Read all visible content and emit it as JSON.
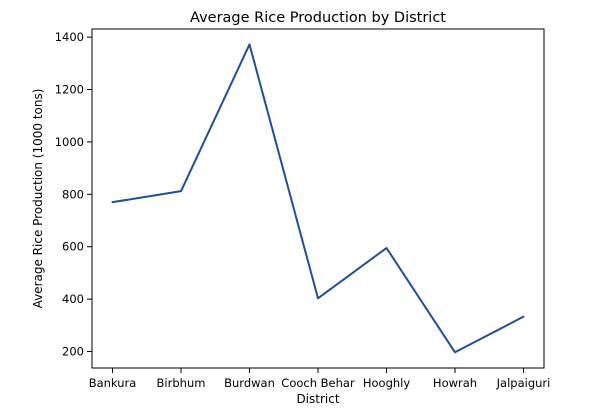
{
  "chart_data": {
    "type": "line",
    "title": "Average Rice Production by District",
    "xlabel": "District",
    "ylabel": "Average Rice Production (1000 tons)",
    "categories": [
      "Bankura",
      "Birbhum",
      "Burdwan",
      "Cooch Behar",
      "Hooghly",
      "Howrah",
      "Jalpaiguri"
    ],
    "series": [
      {
        "values": [
          770,
          812,
          1372,
          403,
          595,
          197,
          333
        ]
      }
    ],
    "yticks": [
      200,
      400,
      600,
      800,
      1000,
      1200,
      1400
    ],
    "ylim": [
      137,
      1431
    ],
    "grid": false,
    "line_color": "#1f4e9a"
  }
}
